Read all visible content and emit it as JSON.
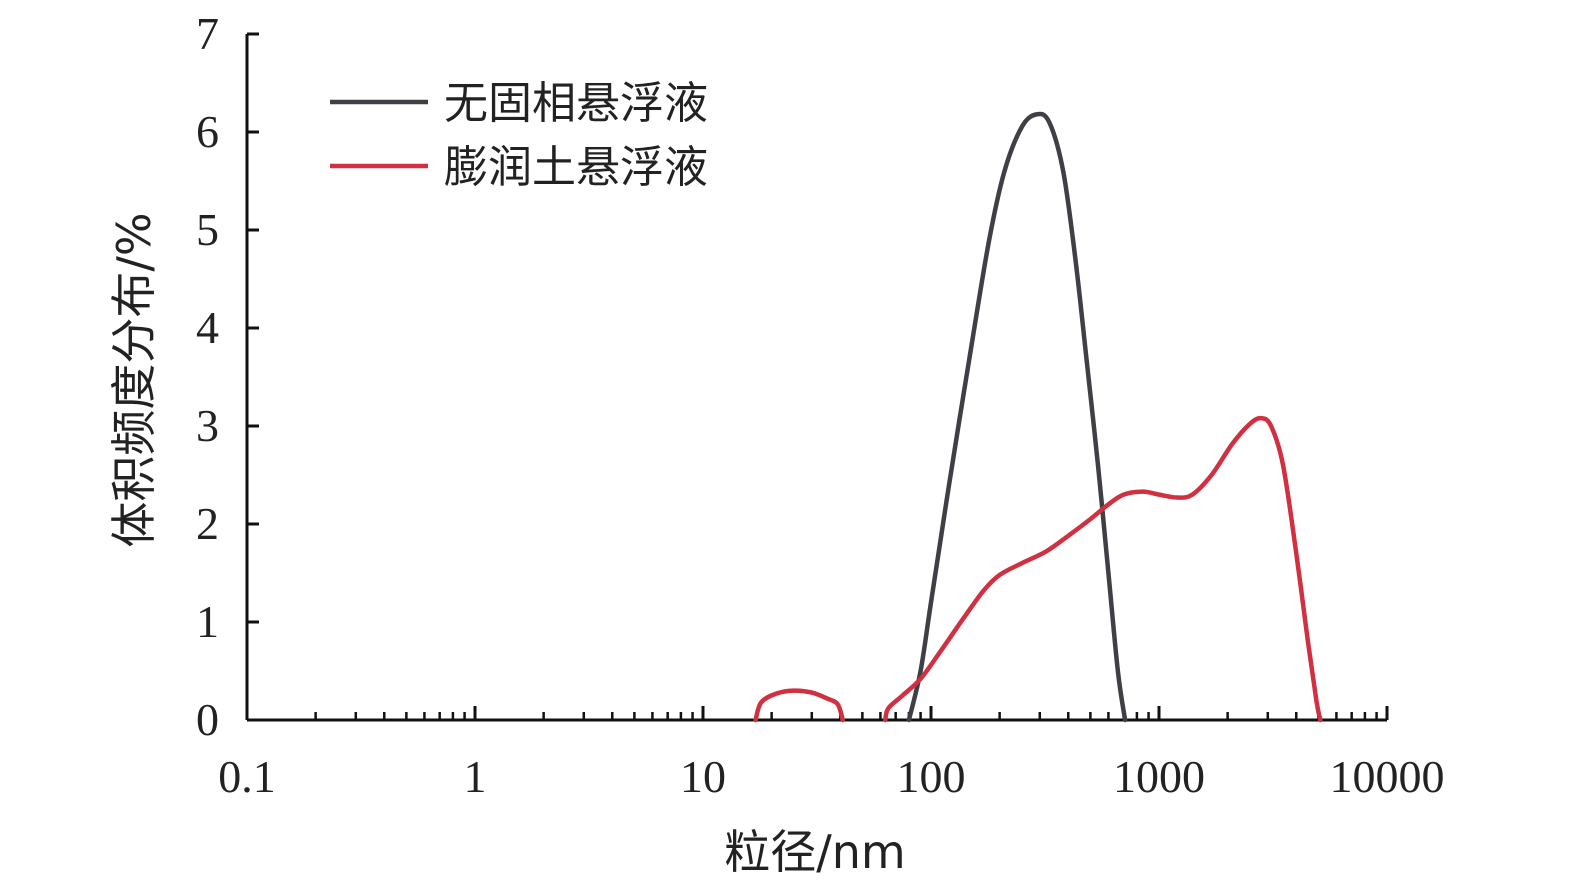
{
  "chart_data": {
    "type": "line",
    "xscale": "log",
    "xlabel": "粒径/nm",
    "ylabel": "体积频度分布/%",
    "xlim": [
      0.1,
      10000
    ],
    "ylim": [
      0,
      7
    ],
    "x_tick_labels": [
      "0.1",
      "1",
      "10",
      "100",
      "1000",
      "10000"
    ],
    "y_tick_labels": [
      "0",
      "1",
      "2",
      "3",
      "4",
      "5",
      "6",
      "7"
    ],
    "legend_position": "top-left",
    "grid": false,
    "series": [
      {
        "name": "无固相悬浮液",
        "color": "#3f3f46",
        "points": [
          [
            80,
            0
          ],
          [
            90,
            0.5
          ],
          [
            100,
            1.2
          ],
          [
            120,
            2.4
          ],
          [
            150,
            3.8
          ],
          [
            180,
            4.9
          ],
          [
            210,
            5.6
          ],
          [
            250,
            6.05
          ],
          [
            290,
            6.18
          ],
          [
            330,
            6.1
          ],
          [
            380,
            5.6
          ],
          [
            430,
            4.7
          ],
          [
            480,
            3.7
          ],
          [
            540,
            2.6
          ],
          [
            600,
            1.5
          ],
          [
            660,
            0.5
          ],
          [
            710,
            0
          ]
        ]
      },
      {
        "name": "膨润土悬浮液",
        "color": "#d03040",
        "segments": [
          [
            [
              17,
              0
            ],
            [
              18,
              0.18
            ],
            [
              21,
              0.27
            ],
            [
              25,
              0.3
            ],
            [
              30,
              0.28
            ],
            [
              35,
              0.22
            ],
            [
              39,
              0.16
            ],
            [
              41,
              0
            ]
          ],
          [
            [
              63,
              0
            ],
            [
              65,
              0.12
            ],
            [
              75,
              0.25
            ],
            [
              90,
              0.42
            ],
            [
              110,
              0.7
            ],
            [
              140,
              1.05
            ],
            [
              170,
              1.32
            ],
            [
              200,
              1.48
            ],
            [
              250,
              1.6
            ],
            [
              320,
              1.72
            ],
            [
              400,
              1.88
            ],
            [
              500,
              2.05
            ],
            [
              600,
              2.2
            ],
            [
              700,
              2.3
            ],
            [
              850,
              2.33
            ],
            [
              1000,
              2.3
            ],
            [
              1200,
              2.27
            ],
            [
              1400,
              2.3
            ],
            [
              1700,
              2.5
            ],
            [
              2100,
              2.82
            ],
            [
              2500,
              3.02
            ],
            [
              2800,
              3.08
            ],
            [
              3100,
              3.0
            ],
            [
              3500,
              2.6
            ],
            [
              4000,
              1.7
            ],
            [
              4500,
              0.8
            ],
            [
              4900,
              0.2
            ],
            [
              5100,
              0
            ]
          ]
        ]
      }
    ]
  }
}
